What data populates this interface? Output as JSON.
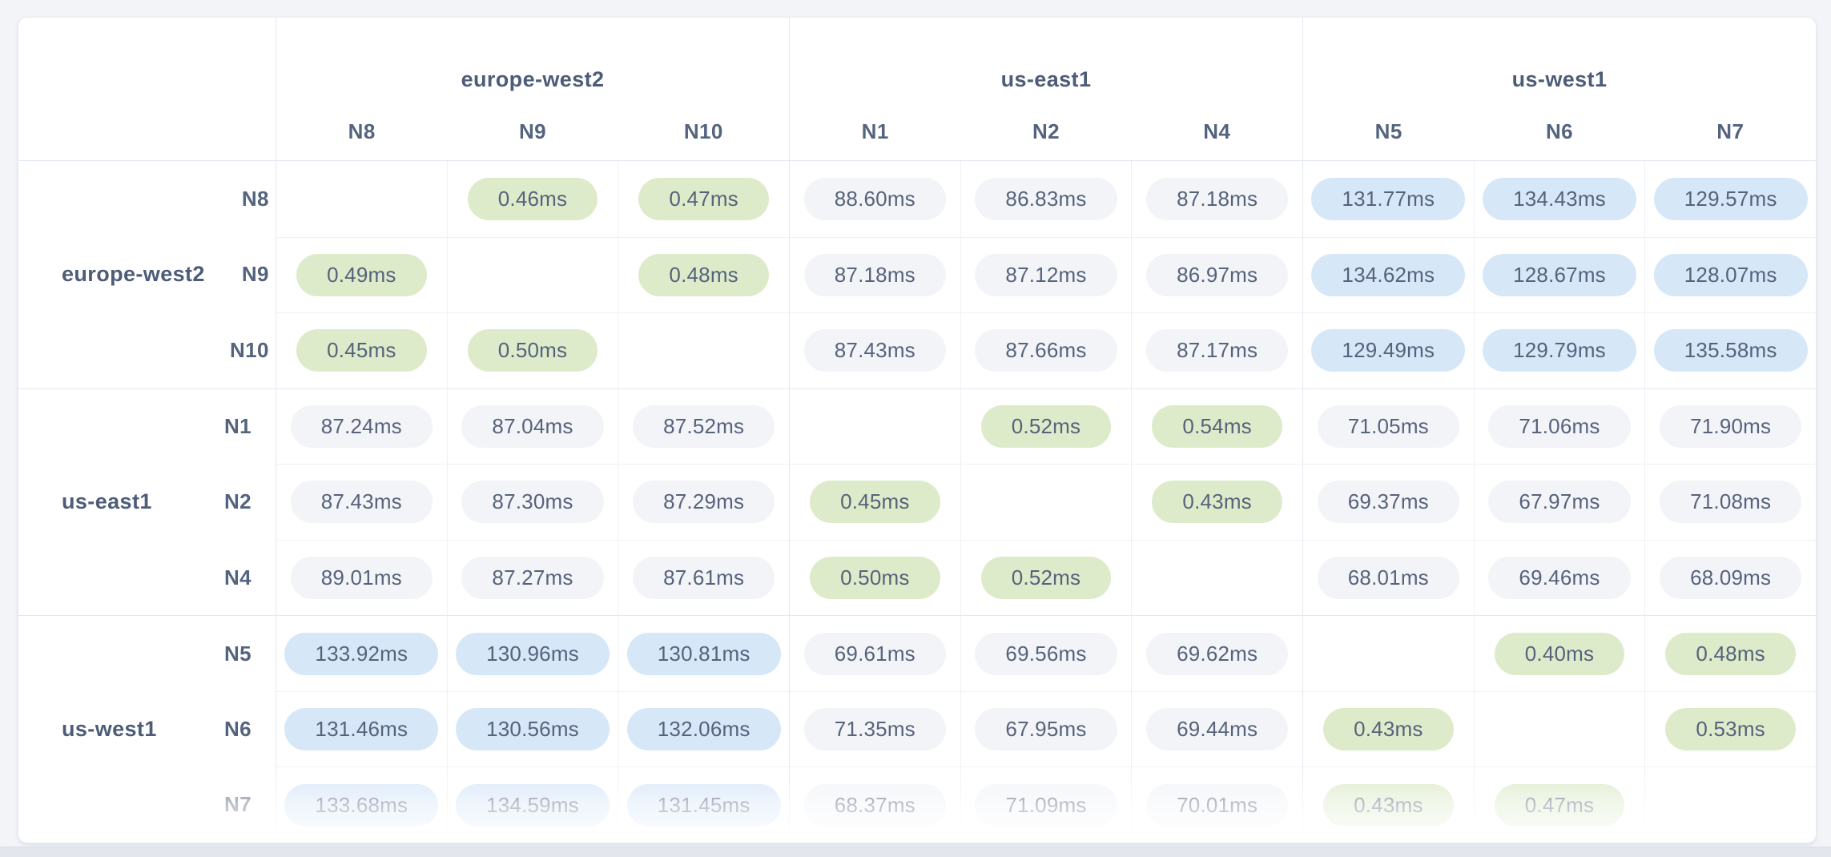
{
  "colors": {
    "page_bg": "#f2f4f8",
    "card_bg": "#ffffff",
    "border_light": "#eef1f6",
    "border_group": "#e3e8f0",
    "header_text": "#4d5c77",
    "value_text": "#57627b",
    "pill_low_bg": "#ddebcb",
    "pill_mid_bg": "#f2f4f8",
    "pill_high_bg": "#d6e7f8"
  },
  "chart_data": {
    "type": "heatmap",
    "unit": "ms",
    "value_format_decimals": 2,
    "groups": [
      {
        "region": "europe-west2",
        "nodes": [
          "N8",
          "N9",
          "N10"
        ]
      },
      {
        "region": "us-east1",
        "nodes": [
          "N1",
          "N2",
          "N4"
        ]
      },
      {
        "region": "us-west1",
        "nodes": [
          "N5",
          "N6",
          "N7"
        ]
      }
    ],
    "nodes": [
      "N8",
      "N9",
      "N10",
      "N1",
      "N2",
      "N4",
      "N5",
      "N6",
      "N7"
    ],
    "matrix_ms": [
      [
        null,
        0.46,
        0.47,
        88.6,
        86.83,
        87.18,
        131.77,
        134.43,
        129.57
      ],
      [
        0.49,
        null,
        0.48,
        87.18,
        87.12,
        86.97,
        134.62,
        128.67,
        128.07
      ],
      [
        0.45,
        0.5,
        null,
        87.43,
        87.66,
        87.17,
        129.49,
        129.79,
        135.58
      ],
      [
        87.24,
        87.04,
        87.52,
        null,
        0.52,
        0.54,
        71.05,
        71.06,
        71.9
      ],
      [
        87.43,
        87.3,
        87.29,
        0.45,
        null,
        0.43,
        69.37,
        67.97,
        71.08
      ],
      [
        89.01,
        87.27,
        87.61,
        0.5,
        0.52,
        null,
        68.01,
        69.46,
        68.09
      ],
      [
        133.92,
        130.96,
        130.81,
        69.61,
        69.56,
        69.62,
        null,
        0.4,
        0.48
      ],
      [
        131.46,
        130.56,
        132.06,
        71.35,
        67.95,
        69.44,
        0.43,
        null,
        0.53
      ],
      [
        133.68,
        134.59,
        131.45,
        68.37,
        71.09,
        70.01,
        0.43,
        0.47,
        null
      ]
    ],
    "color_levels": {
      "low_below_ms": 1,
      "high_above_ms": 100
    }
  }
}
